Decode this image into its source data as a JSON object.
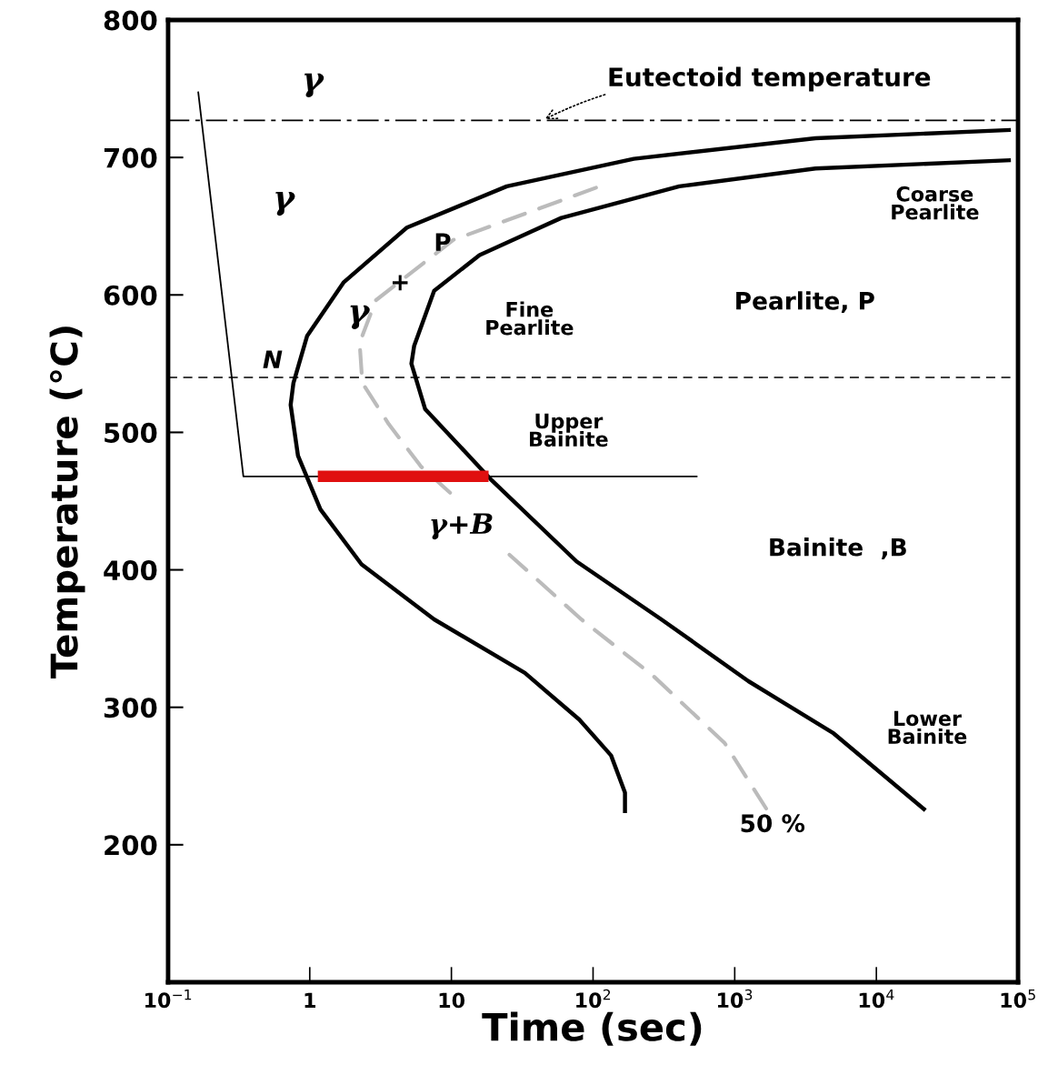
{
  "chart_data": {
    "type": "line",
    "xlabel": "Time (sec)",
    "ylabel": "Temperature (°C)",
    "log": "x",
    "grid": false,
    "legend": false,
    "xlim": [
      0.1,
      100000
    ],
    "ylim": [
      100,
      800
    ],
    "xticks": [
      {
        "value": 0.1,
        "label": "10$^{−1}$"
      },
      1,
      10,
      {
        "value": 100,
        "label": "10$^{2}$"
      },
      {
        "value": 1000,
        "label": "10$^{3}$"
      },
      {
        "value": 10000,
        "label": "10$^{4}$"
      },
      {
        "value": 100000,
        "label": "10$^{5}$"
      }
    ],
    "yticks": [
      200,
      300,
      400,
      500,
      600,
      700,
      800
    ],
    "series": [
      {
        "color": "#000000",
        "line_style": "solid",
        "x": [
          89000,
          3720,
          194,
          24.6,
          4.85,
          1.73,
          0.957,
          0.767,
          0.733,
          0.826,
          1.19,
          2.32,
          7.55,
          33,
          80,
          134,
          168,
          168
        ],
        "values": [
          720,
          714,
          699,
          679,
          649,
          609,
          570,
          536,
          520,
          483,
          444,
          404,
          364,
          325,
          291,
          265,
          238,
          223
        ]
      },
      {
        "color": "#000000",
        "line_style": "solid",
        "x": [
          89000,
          3720,
          406,
          59.7,
          15.8,
          7.55,
          5.46,
          5.22,
          6.52,
          18.9,
          76.7,
          303,
          1250,
          5000,
          22200
        ],
        "values": [
          698,
          692,
          679,
          656,
          629,
          603,
          563,
          550,
          517,
          466,
          406,
          364,
          319,
          281,
          225
        ]
      },
      {
        "color": "#bbbbbb",
        "line_style": "dashed",
        "x": [
          105,
          10.3,
          2.92,
          2.25,
          2.35,
          3.61,
          6.12,
          10.3,
          15,
          25.7,
          82.6,
          265,
          849,
          1700
        ],
        "values": [
          678,
          640,
          596,
          565,
          536,
          506,
          475,
          454,
          null,
          411,
          364,
          323,
          274,
          225
        ]
      },
      {
        "color": "#000000",
        "line_style": "solid",
        "x": [
          0.163,
          0.34,
          546
        ],
        "values": [
          748,
          468,
          468
        ]
      },
      {
        "color": "#e01010",
        "line_style": "solid",
        "x": [
          1.14,
          18.3
        ],
        "values": [
          468,
          468
        ]
      }
    ],
    "ref_lines": [
      {
        "axis": "y",
        "value": 727,
        "line_style": "dashdot",
        "color": "#000000"
      },
      {
        "axis": "y",
        "value": 540,
        "line_style": "dashed",
        "color": "#000000"
      }
    ],
    "annotations": [
      {
        "text": "Eutectoid temperature",
        "x": 44,
        "y": 727
      },
      "γ",
      "γ",
      "γ",
      "+",
      "P",
      "N",
      "Fine\nPearlite",
      "Coarse\nPearlite",
      "Pearlite, P",
      "Upper\nBainite",
      "γ+B",
      "Bainite  ,B",
      "Lower\nBainite",
      "50 %"
    ]
  }
}
